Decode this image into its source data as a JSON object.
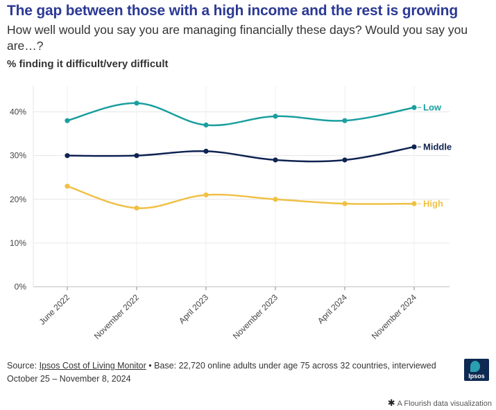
{
  "header": {
    "title": "The gap between those with a high income and the rest is growing",
    "subtitle": "How well would you say you are managing financially these days? Would you say you are…?",
    "measure": "% finding it difficult/very difficult"
  },
  "footer": {
    "source_prefix": "Source: ",
    "source_link": "Ipsos Cost of Living Monitor",
    "source_rest": " • Base: 22,720 online adults under age 75 across 32 countries, interviewed October 25 – November 8, 2024",
    "logo_text": "Ipsos",
    "flourish_star": "✱",
    "flourish_text": "A Flourish data visualization"
  },
  "chart_data": {
    "type": "line",
    "categories": [
      "June 2022",
      "November 2022",
      "April 2023",
      "November 2023",
      "April 2024",
      "November 2024"
    ],
    "series": [
      {
        "name": "Low",
        "color": "#1a9e9e",
        "values": [
          38,
          42,
          37,
          39,
          38,
          41
        ]
      },
      {
        "name": "Middle",
        "color": "#0f2352",
        "values": [
          30,
          30,
          31,
          29,
          29,
          32
        ]
      },
      {
        "name": "High",
        "color": "#f0c045",
        "values": [
          23,
          18,
          21,
          20,
          19,
          19
        ]
      }
    ],
    "ylim": [
      0,
      45
    ],
    "yticks": [
      0,
      10,
      20,
      30,
      40
    ],
    "ytick_labels": [
      "0%",
      "10%",
      "20%",
      "30%",
      "40%"
    ],
    "grid": true,
    "legend": "end-of-line labels"
  }
}
